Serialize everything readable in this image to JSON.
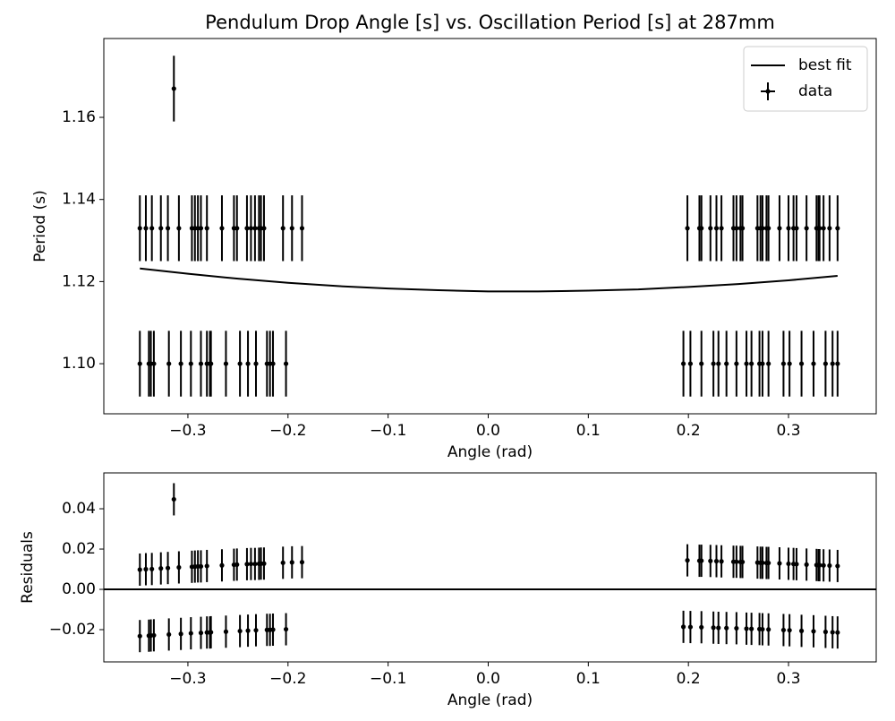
{
  "chart_data": [
    {
      "type": "errorbar",
      "title": "Pendulum Drop Angle [s] vs. Oscillation Period [s] at 287mm",
      "x_label": "Angle (rad)",
      "y_label": "Period (s)",
      "xlim": [
        -0.384,
        0.3876
      ],
      "ylim": [
        1.0878,
        1.1792
      ],
      "xticks": [
        {
          "value": -0.3,
          "label": "−0.3"
        },
        {
          "value": -0.2,
          "label": "−0.2"
        },
        {
          "value": -0.1,
          "label": "−0.1"
        },
        {
          "value": 0,
          "label": "0.0"
        },
        0.1,
        0.2,
        0.3
      ],
      "yticks": [
        {
          "value": 1.1,
          "label": "1.10"
        },
        1.12,
        1.14,
        1.16
      ],
      "legend": "upper right",
      "series": [
        {
          "name": "best fit",
          "style": "line",
          "color": "#000000",
          "x": [
            -0.348,
            -0.3,
            -0.25,
            -0.2,
            -0.15,
            -0.1,
            -0.05,
            0,
            0.035,
            0.05,
            0.1,
            0.15,
            0.2,
            0.25,
            0.3,
            0.349
          ],
          "values": [
            1.1232,
            1.1219,
            1.1207,
            1.1197,
            1.1189,
            1.1183,
            1.1179,
            1.1176,
            1.1176,
            1.1176,
            1.1178,
            1.1181,
            1.1187,
            1.1194,
            1.1203,
            1.1214
          ]
        },
        {
          "name": "data",
          "style": "errorbar",
          "color": "#000000",
          "yerr": 0.008,
          "x": [
            -0.348,
            -0.342,
            -0.336,
            -0.327,
            -0.32,
            -0.309,
            -0.296,
            -0.293,
            -0.29,
            -0.287,
            -0.281,
            -0.266,
            -0.254,
            -0.251,
            -0.241,
            -0.237,
            -0.233,
            -0.229,
            -0.227,
            -0.224,
            -0.205,
            -0.196,
            -0.186,
            0.199,
            0.211,
            0.213,
            0.222,
            0.228,
            0.233,
            0.245,
            0.248,
            0.252,
            0.254,
            0.269,
            0.272,
            0.274,
            0.278,
            0.28,
            0.291,
            0.3,
            0.305,
            0.308,
            0.318,
            0.328,
            0.33,
            0.331,
            0.335,
            0.341,
            0.349,
            -0.314,
            -0.348,
            -0.339,
            -0.337,
            -0.334,
            -0.319,
            -0.307,
            -0.297,
            -0.287,
            -0.281,
            -0.278,
            -0.277,
            -0.262,
            -0.248,
            -0.24,
            -0.232,
            -0.221,
            -0.218,
            -0.215,
            -0.202,
            0.195,
            0.202,
            0.213,
            0.225,
            0.23,
            0.238,
            0.248,
            0.258,
            0.263,
            0.271,
            0.274,
            0.28,
            0.295,
            0.301,
            0.313,
            0.325,
            0.337,
            0.344,
            0.349
          ],
          "values": [
            1.133,
            1.133,
            1.133,
            1.133,
            1.133,
            1.133,
            1.133,
            1.133,
            1.133,
            1.133,
            1.133,
            1.133,
            1.133,
            1.133,
            1.133,
            1.133,
            1.133,
            1.133,
            1.133,
            1.133,
            1.133,
            1.133,
            1.133,
            1.133,
            1.133,
            1.133,
            1.133,
            1.133,
            1.133,
            1.133,
            1.133,
            1.133,
            1.133,
            1.133,
            1.133,
            1.133,
            1.133,
            1.133,
            1.133,
            1.133,
            1.133,
            1.133,
            1.133,
            1.133,
            1.133,
            1.133,
            1.133,
            1.133,
            1.133,
            1.167,
            1.1,
            1.1,
            1.1,
            1.1,
            1.1,
            1.1,
            1.1,
            1.1,
            1.1,
            1.1,
            1.1,
            1.1,
            1.1,
            1.1,
            1.1,
            1.1,
            1.1,
            1.1,
            1.1,
            1.1,
            1.1,
            1.1,
            1.1,
            1.1,
            1.1,
            1.1,
            1.1,
            1.1,
            1.1,
            1.1,
            1.1,
            1.1,
            1.1,
            1.1,
            1.1,
            1.1,
            1.1,
            1.1
          ]
        }
      ]
    },
    {
      "type": "errorbar",
      "x_label": "Angle (rad)",
      "y_label": "Residuals",
      "xlim": [
        -0.384,
        0.3876
      ],
      "ylim": [
        -0.036,
        0.0578
      ],
      "xticks": [
        {
          "value": -0.3,
          "label": "−0.3"
        },
        {
          "value": -0.2,
          "label": "−0.2"
        },
        {
          "value": -0.1,
          "label": "−0.1"
        },
        {
          "value": 0,
          "label": "0.0"
        },
        0.1,
        0.2,
        0.3
      ],
      "yticks": [
        {
          "value": -0.02,
          "label": "−0.02"
        },
        {
          "value": 0,
          "label": "0.00"
        },
        0.02,
        0.04
      ],
      "hline": 0,
      "series": [
        {
          "style": "errorbar",
          "color": "#000000",
          "yerr": 0.008,
          "x": [
            -0.348,
            -0.342,
            -0.336,
            -0.327,
            -0.32,
            -0.309,
            -0.296,
            -0.293,
            -0.29,
            -0.287,
            -0.281,
            -0.266,
            -0.254,
            -0.251,
            -0.241,
            -0.237,
            -0.233,
            -0.229,
            -0.227,
            -0.224,
            -0.205,
            -0.196,
            -0.186,
            0.199,
            0.211,
            0.213,
            0.222,
            0.228,
            0.233,
            0.245,
            0.248,
            0.252,
            0.254,
            0.269,
            0.272,
            0.274,
            0.278,
            0.28,
            0.291,
            0.3,
            0.305,
            0.308,
            0.318,
            0.328,
            0.33,
            0.331,
            0.335,
            0.341,
            0.349,
            -0.314,
            -0.348,
            -0.339,
            -0.337,
            -0.334,
            -0.319,
            -0.307,
            -0.297,
            -0.287,
            -0.281,
            -0.278,
            -0.277,
            -0.262,
            -0.248,
            -0.24,
            -0.232,
            -0.221,
            -0.218,
            -0.215,
            -0.202,
            0.195,
            0.202,
            0.213,
            0.225,
            0.23,
            0.238,
            0.248,
            0.258,
            0.263,
            0.271,
            0.274,
            0.28,
            0.295,
            0.301,
            0.313,
            0.325,
            0.337,
            0.344,
            0.349
          ],
          "values": [
            0.0098,
            0.01,
            0.0101,
            0.0104,
            0.0106,
            0.0109,
            0.0112,
            0.0113,
            0.0114,
            0.0114,
            0.0116,
            0.0119,
            0.0122,
            0.0123,
            0.0125,
            0.0126,
            0.0126,
            0.0127,
            0.0128,
            0.0128,
            0.0132,
            0.0134,
            0.0135,
            0.0144,
            0.0142,
            0.0142,
            0.0141,
            0.014,
            0.0139,
            0.0137,
            0.0137,
            0.0136,
            0.0136,
            0.0133,
            0.0132,
            0.0132,
            0.0131,
            0.0131,
            0.0129,
            0.0127,
            0.0126,
            0.0125,
            0.0123,
            0.0121,
            0.012,
            0.012,
            0.0119,
            0.0118,
            0.0116,
            0.0447,
            -0.0232,
            -0.023,
            -0.0229,
            -0.0228,
            -0.0224,
            -0.0221,
            -0.0218,
            -0.0216,
            -0.0214,
            -0.0214,
            -0.0213,
            -0.021,
            -0.0207,
            -0.0205,
            -0.0203,
            -0.0201,
            -0.0201,
            -0.02,
            -0.0198,
            -0.0186,
            -0.0187,
            -0.0188,
            -0.019,
            -0.0191,
            -0.0192,
            -0.0193,
            -0.0195,
            -0.0196,
            -0.0197,
            -0.0198,
            -0.0199,
            -0.0202,
            -0.0203,
            -0.0206,
            -0.0208,
            -0.0211,
            -0.0213,
            -0.0214
          ]
        }
      ]
    }
  ]
}
